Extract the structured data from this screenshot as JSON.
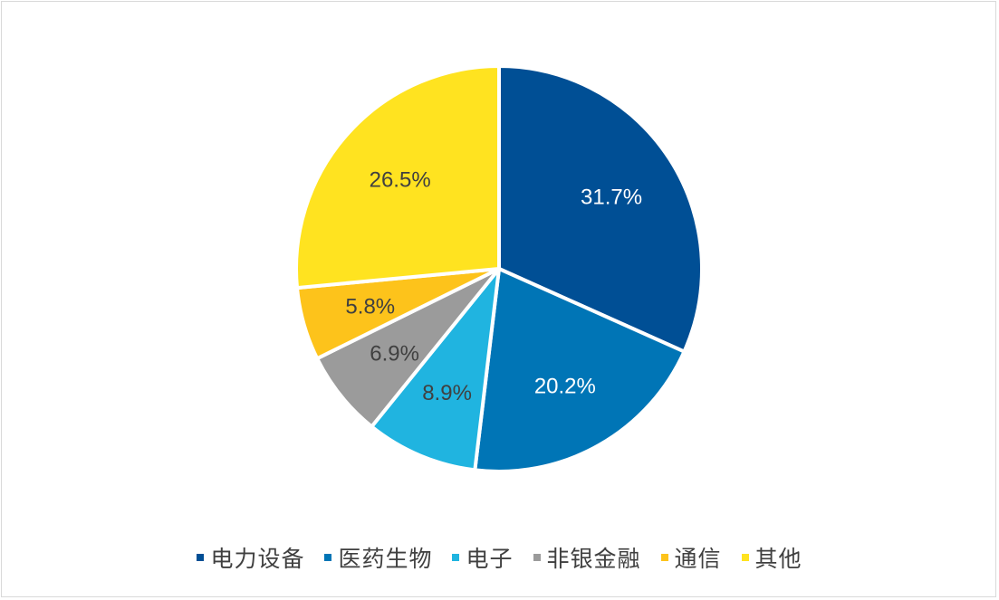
{
  "chart_data": {
    "type": "pie",
    "title": "",
    "categories": [
      "电力设备",
      "医药生物",
      "电子",
      "非银金融",
      "通信",
      "其他"
    ],
    "values": [
      31.7,
      20.2,
      8.9,
      6.9,
      5.8,
      26.5
    ],
    "labels": [
      "31.7%",
      "20.2%",
      "8.9%",
      "6.9%",
      "5.8%",
      "26.5%"
    ],
    "colors": [
      "#004f95",
      "#0075b6",
      "#20b4e0",
      "#9b9b9b",
      "#fdc31b",
      "#ffe320"
    ],
    "label_colors": [
      "#ffffff",
      "#ffffff",
      "#404040",
      "#404040",
      "#404040",
      "#404040"
    ],
    "start_angle": "12 o'clock",
    "direction": "clockwise",
    "legend_position": "bottom"
  },
  "legend": {
    "items": [
      {
        "label": "电力设备",
        "color": "#004f95"
      },
      {
        "label": "医药生物",
        "color": "#0075b6"
      },
      {
        "label": "电子",
        "color": "#20b4e0"
      },
      {
        "label": "非银金融",
        "color": "#9b9b9b"
      },
      {
        "label": "通信",
        "color": "#fdc31b"
      },
      {
        "label": "其他",
        "color": "#ffe320"
      }
    ]
  }
}
